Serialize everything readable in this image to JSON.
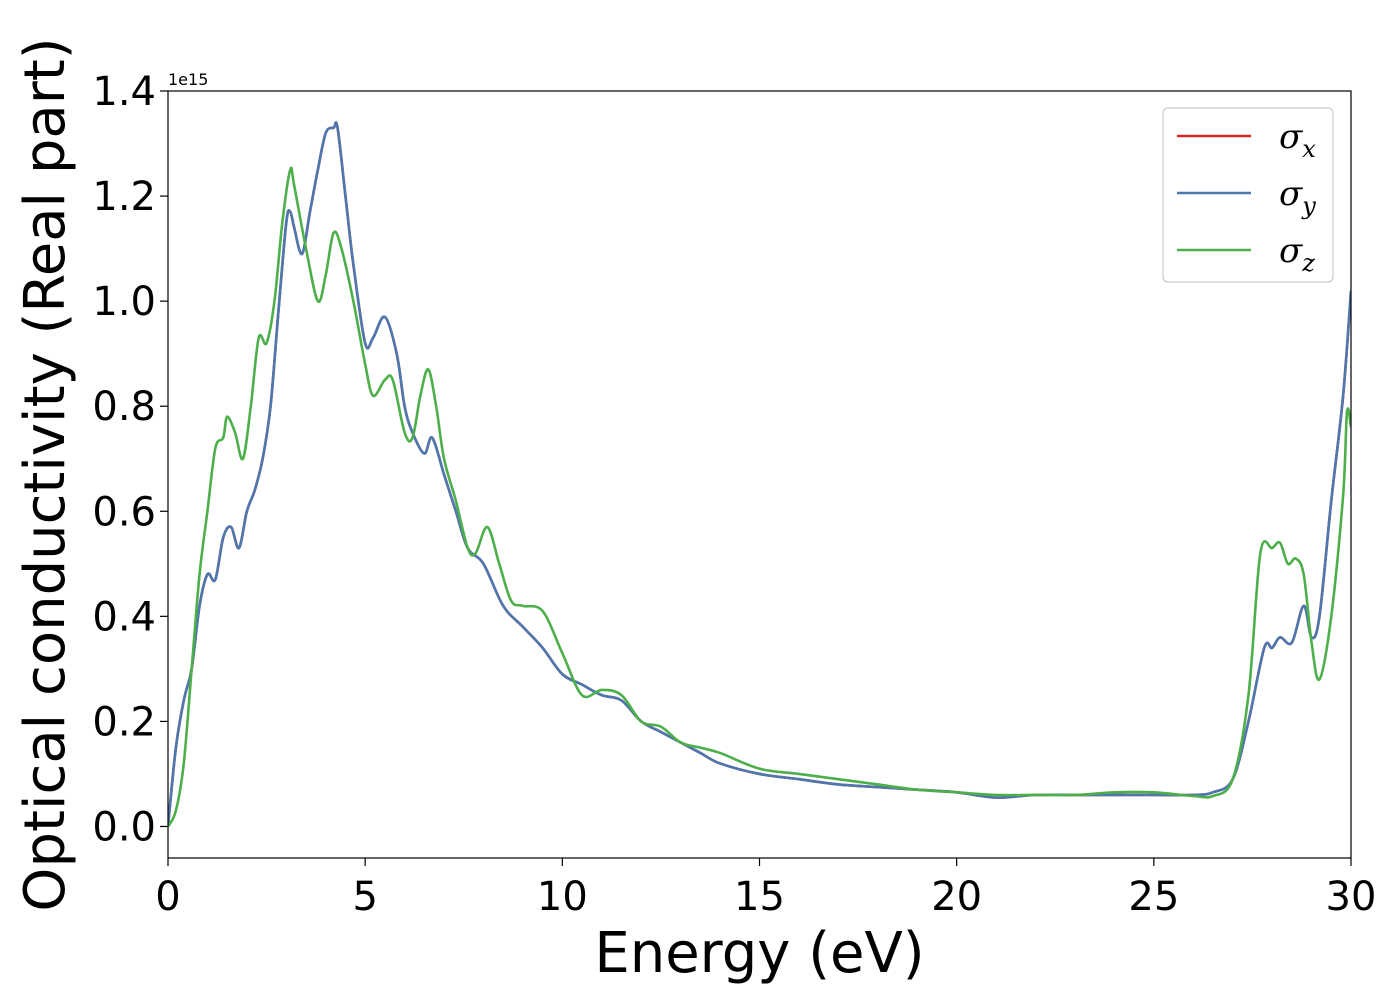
{
  "chart_data": {
    "type": "line",
    "xlabel": "Energy (eV)",
    "ylabel": "Optical conductivity (Real part)",
    "y_offset_text": "1e15",
    "xlim": [
      0,
      30
    ],
    "ylim": [
      -0.06,
      1.4
    ],
    "xticks": [
      0,
      5,
      10,
      15,
      20,
      25,
      30
    ],
    "xtick_labels": [
      "0",
      "5",
      "10",
      "15",
      "20",
      "25",
      "30"
    ],
    "yticks": [
      0.0,
      0.2,
      0.4,
      0.6,
      0.8,
      1.0,
      1.2,
      1.4
    ],
    "ytick_labels": [
      "0.0",
      "0.2",
      "0.4",
      "0.6",
      "0.8",
      "1.0",
      "1.2",
      "1.4"
    ],
    "grid": false,
    "legend_position": "top-right",
    "series": [
      {
        "name": "σ",
        "sub": "x",
        "color": "#d62728",
        "x": [
          0,
          0.2,
          0.4,
          0.6,
          0.8,
          1.0,
          1.2,
          1.4,
          1.6,
          1.8,
          2.0,
          2.2,
          2.4,
          2.6,
          2.8,
          3.0,
          3.1,
          3.2,
          3.4,
          3.6,
          3.8,
          4.0,
          4.2,
          4.3,
          4.5,
          4.7,
          5.0,
          5.2,
          5.5,
          5.8,
          6.0,
          6.2,
          6.5,
          6.7,
          7.0,
          7.3,
          7.6,
          8.0,
          8.5,
          9.0,
          9.5,
          10.0,
          10.5,
          11.0,
          11.5,
          12.0,
          12.5,
          13.0,
          13.5,
          14.0,
          15.0,
          16.0,
          17.0,
          18.0,
          19.0,
          20.0,
          21.0,
          22.0,
          23.0,
          24.0,
          25.0,
          26.0,
          26.5,
          27.0,
          27.4,
          27.8,
          28.0,
          28.2,
          28.5,
          28.8,
          29.0,
          29.2,
          29.5,
          29.8,
          30.0
        ],
        "y": [
          0.0,
          0.15,
          0.24,
          0.3,
          0.42,
          0.48,
          0.47,
          0.55,
          0.57,
          0.53,
          0.6,
          0.64,
          0.7,
          0.8,
          0.98,
          1.15,
          1.17,
          1.14,
          1.09,
          1.17,
          1.25,
          1.32,
          1.33,
          1.33,
          1.2,
          1.07,
          0.92,
          0.93,
          0.97,
          0.9,
          0.8,
          0.75,
          0.71,
          0.74,
          0.67,
          0.6,
          0.53,
          0.5,
          0.42,
          0.38,
          0.34,
          0.29,
          0.27,
          0.25,
          0.24,
          0.2,
          0.18,
          0.16,
          0.14,
          0.12,
          0.1,
          0.09,
          0.08,
          0.075,
          0.07,
          0.065,
          0.055,
          0.06,
          0.06,
          0.06,
          0.06,
          0.06,
          0.065,
          0.09,
          0.2,
          0.34,
          0.34,
          0.36,
          0.35,
          0.42,
          0.36,
          0.4,
          0.62,
          0.82,
          1.02
        ]
      },
      {
        "name": "σ",
        "sub": "y",
        "color": "#4c78b0",
        "x": [
          0,
          0.2,
          0.4,
          0.6,
          0.8,
          1.0,
          1.2,
          1.4,
          1.6,
          1.8,
          2.0,
          2.2,
          2.4,
          2.6,
          2.8,
          3.0,
          3.1,
          3.2,
          3.4,
          3.6,
          3.8,
          4.0,
          4.2,
          4.3,
          4.5,
          4.7,
          5.0,
          5.2,
          5.5,
          5.8,
          6.0,
          6.2,
          6.5,
          6.7,
          7.0,
          7.3,
          7.6,
          8.0,
          8.5,
          9.0,
          9.5,
          10.0,
          10.5,
          11.0,
          11.5,
          12.0,
          12.5,
          13.0,
          13.5,
          14.0,
          15.0,
          16.0,
          17.0,
          18.0,
          19.0,
          20.0,
          21.0,
          22.0,
          23.0,
          24.0,
          25.0,
          26.0,
          26.5,
          27.0,
          27.4,
          27.8,
          28.0,
          28.2,
          28.5,
          28.8,
          29.0,
          29.2,
          29.5,
          29.8,
          30.0
        ],
        "y": [
          0.0,
          0.15,
          0.24,
          0.3,
          0.42,
          0.48,
          0.47,
          0.55,
          0.57,
          0.53,
          0.6,
          0.64,
          0.7,
          0.8,
          0.98,
          1.15,
          1.17,
          1.14,
          1.09,
          1.17,
          1.25,
          1.32,
          1.33,
          1.33,
          1.2,
          1.07,
          0.92,
          0.93,
          0.97,
          0.9,
          0.8,
          0.75,
          0.71,
          0.74,
          0.67,
          0.6,
          0.53,
          0.5,
          0.42,
          0.38,
          0.34,
          0.29,
          0.27,
          0.25,
          0.24,
          0.2,
          0.18,
          0.16,
          0.14,
          0.12,
          0.1,
          0.09,
          0.08,
          0.075,
          0.07,
          0.065,
          0.055,
          0.06,
          0.06,
          0.06,
          0.06,
          0.06,
          0.065,
          0.09,
          0.2,
          0.34,
          0.34,
          0.36,
          0.35,
          0.42,
          0.36,
          0.4,
          0.62,
          0.82,
          1.02
        ]
      },
      {
        "name": "σ",
        "sub": "z",
        "color": "#4daf4a",
        "x": [
          0,
          0.2,
          0.4,
          0.6,
          0.8,
          1.0,
          1.2,
          1.4,
          1.5,
          1.7,
          1.9,
          2.1,
          2.3,
          2.5,
          2.7,
          2.9,
          3.1,
          3.2,
          3.5,
          3.8,
          4.0,
          4.2,
          4.4,
          4.7,
          5.0,
          5.2,
          5.5,
          5.7,
          6.0,
          6.2,
          6.4,
          6.6,
          6.8,
          7.0,
          7.3,
          7.6,
          7.8,
          8.1,
          8.4,
          8.7,
          9.0,
          9.5,
          10.0,
          10.5,
          11.0,
          11.5,
          12.0,
          12.5,
          13.0,
          13.5,
          14.0,
          15.0,
          16.0,
          17.0,
          18.0,
          19.0,
          20.0,
          21.0,
          22.0,
          23.0,
          24.0,
          25.0,
          26.0,
          26.5,
          27.0,
          27.4,
          27.7,
          28.0,
          28.2,
          28.4,
          28.6,
          28.8,
          29.0,
          29.2,
          29.5,
          29.8,
          29.9,
          30.0
        ],
        "y": [
          0.0,
          0.03,
          0.12,
          0.3,
          0.48,
          0.6,
          0.72,
          0.74,
          0.78,
          0.75,
          0.7,
          0.8,
          0.93,
          0.92,
          1.0,
          1.15,
          1.25,
          1.22,
          1.1,
          1.0,
          1.05,
          1.13,
          1.1,
          1.0,
          0.88,
          0.82,
          0.85,
          0.85,
          0.75,
          0.74,
          0.82,
          0.87,
          0.8,
          0.7,
          0.62,
          0.53,
          0.52,
          0.57,
          0.5,
          0.43,
          0.42,
          0.41,
          0.33,
          0.25,
          0.26,
          0.25,
          0.2,
          0.19,
          0.16,
          0.15,
          0.14,
          0.11,
          0.1,
          0.09,
          0.08,
          0.07,
          0.065,
          0.06,
          0.06,
          0.06,
          0.065,
          0.065,
          0.058,
          0.058,
          0.09,
          0.25,
          0.52,
          0.53,
          0.54,
          0.5,
          0.51,
          0.48,
          0.35,
          0.28,
          0.4,
          0.63,
          0.79,
          0.76
        ]
      }
    ]
  }
}
